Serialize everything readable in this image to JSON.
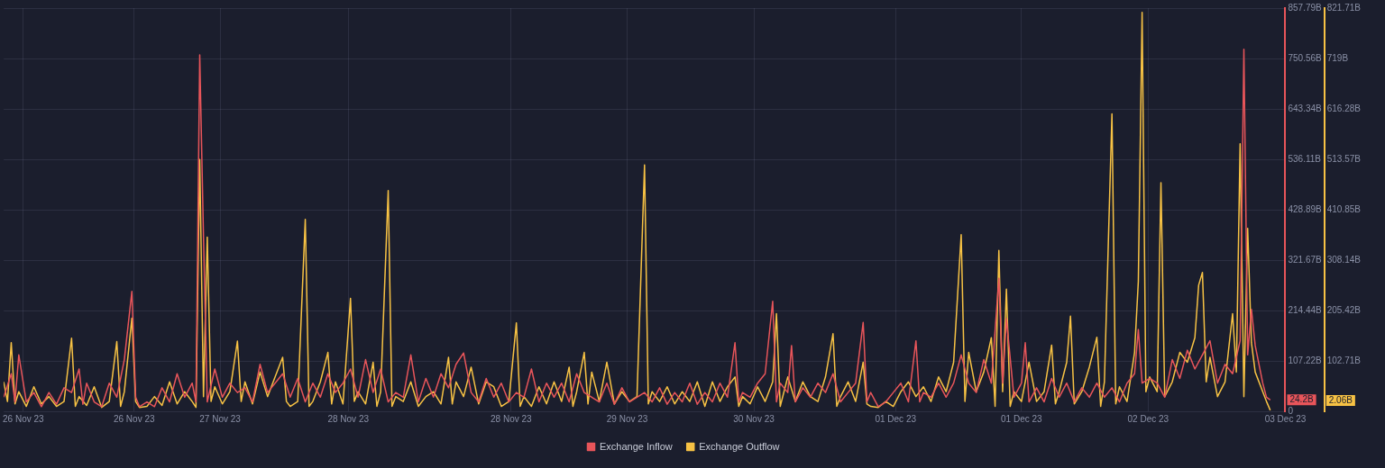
{
  "chart_data": {
    "type": "line",
    "xlim": [
      "--11-26T04:00",
      "--12-03T06:00"
    ],
    "xticks": [
      {
        "value": "--11-26T06:36",
        "label": "26 Nov 23"
      },
      {
        "value": "--11-26T21:18",
        "label": "26 Nov 23"
      },
      {
        "value": "--11-27T08:42",
        "label": "27 Nov 23"
      },
      {
        "value": "--11-28T01:42",
        "label": "28 Nov 23"
      },
      {
        "value": "--11-28T23:18",
        "label": "28 Nov 23"
      },
      {
        "value": "--11-29T14:42",
        "label": "29 Nov 23"
      },
      {
        "value": "--11-30T07:30",
        "label": "30 Nov 23"
      },
      {
        "value": "--12-01T02:18",
        "label": "01 Dec 23"
      },
      {
        "value": "--12-01T19:00",
        "label": "01 Dec 23"
      },
      {
        "value": "--12-02T11:48",
        "label": "02 Dec 23"
      },
      {
        "value": "--12-03T06:00",
        "label": "03 Dec 23"
      }
    ],
    "ylim": [
      0,
      857.79
    ],
    "yticks": [
      0,
      {
        "value": 107.22,
        "label": "107.22B"
      },
      {
        "value": 214.44,
        "label": "214.44B"
      },
      {
        "value": 321.67,
        "label": "321.67B"
      },
      {
        "value": 428.89,
        "label": "428.89B"
      },
      {
        "value": 536.11,
        "label": "536.11B"
      },
      {
        "value": 643.34,
        "label": "643.34B"
      },
      {
        "value": 750.56,
        "label": "750.56B"
      },
      {
        "value": 857.79,
        "label": "857.79B"
      }
    ],
    "y2lim": [
      0,
      821.71
    ],
    "y2ticks": [
      {
        "value": 0,
        "label": null
      },
      {
        "value": 102.71,
        "label": "102.71B"
      },
      {
        "value": 205.42,
        "label": "205.42B"
      },
      {
        "value": 308.14,
        "label": "308.14B"
      },
      {
        "value": 410.85,
        "label": "410.85B"
      },
      {
        "value": 513.57,
        "label": "513.57B"
      },
      {
        "value": 616.28,
        "label": "616.28B"
      },
      {
        "value": 719,
        "label": "719B"
      },
      {
        "value": 821.71,
        "label": "821.71B"
      }
    ],
    "grid": true,
    "legend": "bottom",
    "marker": "none",
    "line_style": "solid",
    "annotations": [
      "24.2B",
      "2.06B"
    ],
    "series": [
      {
        "name": "Exchange Inflow",
        "color": "#e8555a",
        "axis": "y",
        "x": [
          "--11-26T04:00",
          "--11-26T05:00",
          "--11-26T05:30",
          "--11-26T06:00",
          "--11-26T07:00",
          "--11-26T08:00",
          "--11-26T09:00",
          "--11-26T10:00",
          "--11-26T11:00",
          "--11-26T12:00",
          "--11-26T13:00",
          "--11-26T14:00",
          "--11-26T14:30",
          "--11-26T15:00",
          "--11-26T16:00",
          "--11-26T17:00",
          "--11-26T18:00",
          "--11-26T19:00",
          "--11-26T20:00",
          "--11-26T21:00",
          "--11-26T21:30",
          "--11-26T22:00",
          "--11-26T23:00",
          "--11-27T00:00",
          "--11-27T01:00",
          "--11-27T02:00",
          "--11-27T03:00",
          "--11-27T04:00",
          "--11-27T05:00",
          "--11-27T05:30",
          "--11-27T06:00",
          "--11-27T06:30",
          "--11-27T07:00",
          "--11-27T08:00",
          "--11-27T09:00",
          "--11-27T10:00",
          "--11-27T11:00",
          "--11-27T12:00",
          "--11-27T13:00",
          "--11-27T14:00",
          "--11-27T15:00",
          "--11-27T16:00",
          "--11-27T17:00",
          "--11-27T18:00",
          "--11-27T19:00",
          "--11-27T20:00",
          "--11-27T21:00",
          "--11-27T22:00",
          "--11-27T23:00",
          "--11-28T00:00",
          "--11-28T01:00",
          "--11-28T02:00",
          "--11-28T03:00",
          "--11-28T04:00",
          "--11-28T05:00",
          "--11-28T06:00",
          "--11-28T07:00",
          "--11-28T08:00",
          "--11-28T09:00",
          "--11-28T10:00",
          "--11-28T11:00",
          "--11-28T12:00",
          "--11-28T13:00",
          "--11-28T14:00",
          "--11-28T15:00",
          "--11-28T16:00",
          "--11-28T17:00",
          "--11-28T18:00",
          "--11-28T19:00",
          "--11-28T20:00",
          "--11-28T21:00",
          "--11-28T22:00",
          "--11-28T23:00",
          "--11-29T00:00",
          "--11-29T01:00",
          "--11-29T02:00",
          "--11-29T03:00",
          "--11-29T04:00",
          "--11-29T05:00",
          "--11-29T06:00",
          "--11-29T07:00",
          "--11-29T08:00",
          "--11-29T09:00",
          "--11-29T10:00",
          "--11-29T11:00",
          "--11-29T12:00",
          "--11-29T13:00",
          "--11-29T14:00",
          "--11-29T15:00",
          "--11-29T16:00",
          "--11-29T17:00",
          "--11-29T18:00",
          "--11-29T19:00",
          "--11-29T20:00",
          "--11-29T21:00",
          "--11-29T22:00",
          "--11-29T23:00",
          "--11-30T00:00",
          "--11-30T01:00",
          "--11-30T02:00",
          "--11-30T03:00",
          "--11-30T04:00",
          "--11-30T05:00",
          "--11-30T05:30",
          "--11-30T06:00",
          "--11-30T07:00",
          "--11-30T08:00",
          "--11-30T09:00",
          "--11-30T10:00",
          "--11-30T10:30",
          "--11-30T11:00",
          "--11-30T12:00",
          "--11-30T12:30",
          "--11-30T13:00",
          "--11-30T14:00",
          "--11-30T15:00",
          "--11-30T16:00",
          "--11-30T17:00",
          "--11-30T18:00",
          "--11-30T19:00",
          "--11-30T20:00",
          "--11-30T21:00",
          "--11-30T22:00",
          "--11-30T22:30",
          "--11-30T23:00",
          "--12-01T00:00",
          "--12-01T01:00",
          "--12-01T02:00",
          "--12-01T03:00",
          "--12-01T04:00",
          "--12-01T05:00",
          "--12-01T05:30",
          "--12-01T06:00",
          "--12-01T07:00",
          "--12-01T08:00",
          "--12-01T09:00",
          "--12-01T10:00",
          "--12-01T11:00",
          "--12-01T12:00",
          "--12-01T13:00",
          "--12-01T14:00",
          "--12-01T15:00",
          "--12-01T16:00",
          "--12-01T16:30",
          "--12-01T17:00",
          "--12-01T18:00",
          "--12-01T19:00",
          "--12-01T19:30",
          "--12-01T20:00",
          "--12-01T21:00",
          "--12-01T22:00",
          "--12-01T23:00",
          "--12-02T00:00",
          "--12-02T01:00",
          "--12-02T02:00",
          "--12-02T03:00",
          "--12-02T04:00",
          "--12-02T05:00",
          "--12-02T06:00",
          "--12-02T07:00",
          "--12-02T08:00",
          "--12-02T09:00",
          "--12-02T10:00",
          "--12-02T10:30",
          "--12-02T11:00",
          "--12-02T12:00",
          "--12-02T13:00",
          "--12-02T14:00",
          "--12-02T15:00",
          "--12-02T16:00",
          "--12-02T17:00",
          "--12-02T18:00",
          "--12-02T19:00",
          "--12-02T20:00",
          "--12-02T21:00",
          "--12-02T22:00",
          "--12-02T23:00",
          "--12-03T00:00",
          "--12-03T00:30",
          "--12-03T01:00",
          "--12-03T01:30",
          "--12-03T02:00",
          "--12-03T03:00",
          "--12-03T03:30",
          "--12-03T04:00"
        ],
        "values": [
          30,
          80,
          20,
          120,
          20,
          40,
          10,
          40,
          15,
          50,
          40,
          90,
          15,
          60,
          20,
          10,
          60,
          30,
          110,
          255,
          30,
          10,
          20,
          10,
          50,
          20,
          80,
          30,
          60,
          20,
          758,
          370,
          20,
          90,
          30,
          60,
          40,
          50,
          20,
          100,
          40,
          60,
          80,
          30,
          70,
          20,
          60,
          30,
          80,
          40,
          60,
          90,
          30,
          110,
          40,
          90,
          20,
          40,
          30,
          120,
          20,
          70,
          30,
          80,
          50,
          100,
          124,
          40,
          20,
          70,
          30,
          60,
          20,
          40,
          30,
          90,
          20,
          60,
          30,
          60,
          20,
          80,
          40,
          30,
          20,
          60,
          15,
          50,
          20,
          30,
          40,
          20,
          50,
          15,
          40,
          20,
          60,
          15,
          40,
          20,
          60,
          30,
          146,
          20,
          40,
          30,
          60,
          80,
          234,
          20,
          60,
          40,
          140,
          20,
          50,
          30,
          60,
          40,
          80,
          20,
          40,
          60,
          189,
          20,
          40,
          10,
          20,
          40,
          60,
          20,
          150,
          20,
          40,
          30,
          60,
          30,
          60,
          120,
          60,
          40,
          110,
          60,
          283,
          60,
          197,
          30,
          60,
          146,
          20,
          50,
          20,
          70,
          30,
          60,
          20,
          50,
          30,
          60,
          30,
          50,
          20,
          60,
          80,
          174,
          60,
          70,
          60,
          30,
          110,
          70,
          130,
          90,
          120,
          150,
          60,
          100,
          80,
          150,
          770,
          120,
          217,
          140,
          60,
          30,
          24.2
        ]
      },
      {
        "name": "Exchange Outflow",
        "color": "#f7c244",
        "axis": "y2",
        "x": [
          "--11-26T04:00",
          "--11-26T04:30",
          "--11-26T05:00",
          "--11-26T05:30",
          "--11-26T06:00",
          "--11-26T07:00",
          "--11-26T08:00",
          "--11-26T09:00",
          "--11-26T10:00",
          "--11-26T11:00",
          "--11-26T12:00",
          "--11-26T13:00",
          "--11-26T13:30",
          "--11-26T14:00",
          "--11-26T15:00",
          "--11-26T16:00",
          "--11-26T17:00",
          "--11-26T18:00",
          "--11-26T19:00",
          "--11-26T19:30",
          "--11-26T20:00",
          "--11-26T21:00",
          "--11-26T21:30",
          "--11-26T22:00",
          "--11-26T23:00",
          "--11-27T00:00",
          "--11-27T01:00",
          "--11-27T02:00",
          "--11-27T03:00",
          "--11-27T04:00",
          "--11-27T05:00",
          "--11-27T05:30",
          "--11-27T06:00",
          "--11-27T06:30",
          "--11-27T07:00",
          "--11-27T07:30",
          "--11-27T08:00",
          "--11-27T09:00",
          "--11-27T10:00",
          "--11-27T11:00",
          "--11-27T11:30",
          "--11-27T12:00",
          "--11-27T13:00",
          "--11-27T14:00",
          "--11-27T15:00",
          "--11-27T16:00",
          "--11-27T17:00",
          "--11-27T17:30",
          "--11-27T18:00",
          "--11-27T19:00",
          "--11-27T20:00",
          "--11-27T20:30",
          "--11-27T21:00",
          "--11-27T22:00",
          "--11-27T23:00",
          "--11-27T23:30",
          "--11-28T00:00",
          "--11-28T01:00",
          "--11-28T02:00",
          "--11-28T02:30",
          "--11-28T03:00",
          "--11-28T04:00",
          "--11-28T05:00",
          "--11-28T05:30",
          "--11-28T06:00",
          "--11-28T07:00",
          "--11-28T07:30",
          "--11-28T08:00",
          "--11-28T09:00",
          "--11-28T10:00",
          "--11-28T11:00",
          "--11-28T12:00",
          "--11-28T13:00",
          "--11-28T14:00",
          "--11-28T15:00",
          "--11-28T15:30",
          "--11-28T16:00",
          "--11-28T17:00",
          "--11-28T18:00",
          "--11-28T19:00",
          "--11-28T20:00",
          "--11-28T21:00",
          "--11-28T22:00",
          "--11-28T23:00",
          "--11-29T00:00",
          "--11-29T00:30",
          "--11-29T01:00",
          "--11-29T02:00",
          "--11-29T03:00",
          "--11-29T04:00",
          "--11-29T05:00",
          "--11-29T06:00",
          "--11-29T07:00",
          "--11-29T07:30",
          "--11-29T08:00",
          "--11-29T09:00",
          "--11-29T09:30",
          "--11-29T10:00",
          "--11-29T11:00",
          "--11-29T12:00",
          "--11-29T13:00",
          "--11-29T14:00",
          "--11-29T15:00",
          "--11-29T16:00",
          "--11-29T17:00",
          "--11-29T17:30",
          "--11-29T18:00",
          "--11-29T19:00",
          "--11-29T20:00",
          "--11-29T21:00",
          "--11-29T22:00",
          "--11-29T23:00",
          "--11-30T00:00",
          "--11-30T01:00",
          "--11-30T02:00",
          "--11-30T03:00",
          "--11-30T04:00",
          "--11-30T05:00",
          "--11-30T05:30",
          "--11-30T06:00",
          "--11-30T07:00",
          "--11-30T08:00",
          "--11-30T09:00",
          "--11-30T10:00",
          "--11-30T10:30",
          "--11-30T11:00",
          "--11-30T12:00",
          "--11-30T13:00",
          "--11-30T14:00",
          "--11-30T15:00",
          "--11-30T16:00",
          "--11-30T17:00",
          "--11-30T18:00",
          "--11-30T18:30",
          "--11-30T19:00",
          "--11-30T20:00",
          "--11-30T21:00",
          "--11-30T22:00",
          "--11-30T22:30",
          "--11-30T23:00",
          "--12-01T00:00",
          "--12-01T01:00",
          "--12-01T02:00",
          "--12-01T03:00",
          "--12-01T04:00",
          "--12-01T05:00",
          "--12-01T06:00",
          "--12-01T07:00",
          "--12-01T08:00",
          "--12-01T09:00",
          "--12-01T10:00",
          "--12-01T11:00",
          "--12-01T11:30",
          "--12-01T12:00",
          "--12-01T13:00",
          "--12-01T14:00",
          "--12-01T15:00",
          "--12-01T15:30",
          "--12-01T16:00",
          "--12-01T16:30",
          "--12-01T17:00",
          "--12-01T17:30",
          "--12-01T18:00",
          "--12-01T19:00",
          "--12-01T20:00",
          "--12-01T21:00",
          "--12-01T22:00",
          "--12-01T23:00",
          "--12-01T23:30",
          "--12-02T00:00",
          "--12-02T01:00",
          "--12-02T01:30",
          "--12-02T02:00",
          "--12-02T03:00",
          "--12-02T04:00",
          "--12-02T05:00",
          "--12-02T05:30",
          "--12-02T06:00",
          "--12-02T07:00",
          "--12-02T07:30",
          "--12-02T08:00",
          "--12-02T09:00",
          "--12-02T10:00",
          "--12-02T10:30",
          "--12-02T11:00",
          "--12-02T11:30",
          "--12-02T12:00",
          "--12-02T13:00",
          "--12-02T13:30",
          "--12-02T14:00",
          "--12-02T15:00",
          "--12-02T16:00",
          "--12-02T17:00",
          "--12-02T18:00",
          "--12-02T18:30",
          "--12-02T19:00",
          "--12-02T19:30",
          "--12-02T20:00",
          "--12-02T21:00",
          "--12-02T22:00",
          "--12-02T23:00",
          "--12-02T23:30",
          "--12-03T00:00",
          "--12-03T00:30",
          "--12-03T01:00",
          "--12-03T01:30",
          "--12-03T02:00",
          "--12-03T03:00",
          "--12-03T03:30",
          "--12-03T04:00"
        ],
        "values": [
          60,
          20,
          140,
          15,
          40,
          10,
          50,
          15,
          30,
          10,
          20,
          149,
          10,
          30,
          12,
          50,
          8,
          20,
          142,
          10,
          40,
          190,
          20,
          8,
          10,
          30,
          12,
          60,
          15,
          40,
          20,
          8,
          513,
          30,
          355,
          20,
          50,
          15,
          40,
          143,
          20,
          60,
          15,
          80,
          30,
          70,
          110,
          20,
          10,
          20,
          391,
          10,
          20,
          60,
          120,
          15,
          60,
          15,
          230,
          20,
          40,
          15,
          100,
          10,
          40,
          450,
          10,
          30,
          20,
          60,
          10,
          30,
          40,
          15,
          110,
          15,
          60,
          30,
          90,
          15,
          60,
          50,
          10,
          20,
          180,
          10,
          30,
          10,
          50,
          15,
          60,
          20,
          90,
          10,
          40,
          120,
          15,
          80,
          20,
          100,
          15,
          40,
          20,
          30,
          502,
          15,
          40,
          20,
          50,
          15,
          40,
          20,
          60,
          10,
          60,
          20,
          50,
          70,
          10,
          30,
          15,
          50,
          20,
          60,
          199,
          10,
          70,
          20,
          60,
          30,
          20,
          70,
          158,
          10,
          30,
          60,
          20,
          100,
          15,
          10,
          8,
          20,
          10,
          40,
          60,
          30,
          50,
          20,
          70,
          40,
          100,
          360,
          20,
          120,
          40,
          80,
          150,
          10,
          328,
          40,
          249,
          10,
          40,
          20,
          100,
          20,
          40,
          135,
          15,
          40,
          100,
          194,
          15,
          40,
          90,
          151,
          10,
          60,
          606,
          15,
          50,
          20,
          120,
          265,
          813,
          40,
          70,
          40,
          466,
          30,
          60,
          120,
          100,
          150,
          257,
          283,
          60,
          110,
          30,
          60,
          199,
          80,
          545,
          30,
          373,
          140,
          80,
          40,
          20,
          2.06
        ]
      }
    ]
  }
}
